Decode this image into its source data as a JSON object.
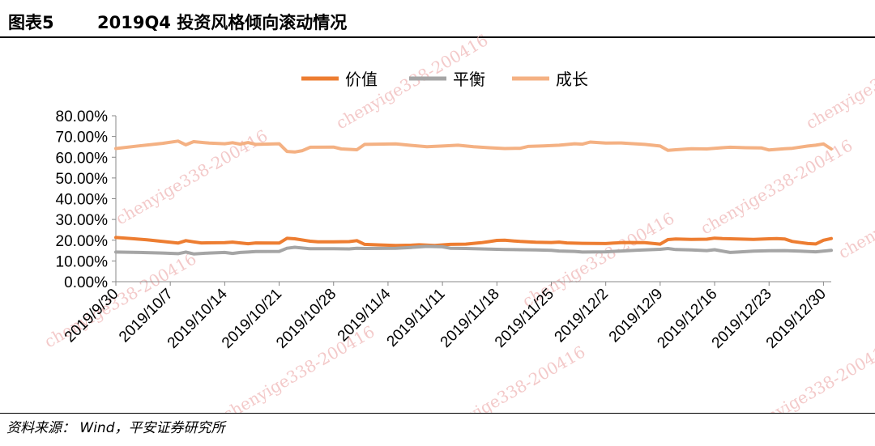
{
  "header": {
    "figure_label": "图表5",
    "title": "2019Q4 投资风格倾向滚动情况"
  },
  "footer": {
    "source": "资料来源： Wind，平安证券研究所"
  },
  "watermark": {
    "text": "chenyige338-200416"
  },
  "colors": {
    "value": "#ED7D31",
    "balance": "#A5A5A5",
    "growth": "#F4B183"
  },
  "chart_data": {
    "type": "line",
    "x_tick_labels": [
      "2019/9/30",
      "2019/10/7",
      "2019/10/14",
      "2019/10/21",
      "2019/10/28",
      "2019/11/4",
      "2019/11/11",
      "2019/11/18",
      "2019/11/25",
      "2019/12/2",
      "2019/12/9",
      "2019/12/16",
      "2019/12/23",
      "2019/12/30"
    ],
    "x_start": "2019-09-30",
    "y_tick_labels": [
      "0.00%",
      "10.00%",
      "20.00%",
      "30.00%",
      "40.00%",
      "50.00%",
      "60.00%",
      "70.00%",
      "80.00%"
    ],
    "ylim": [
      0,
      80
    ],
    "legend_position": "top",
    "series": [
      {
        "name": "价值",
        "color_key": "value",
        "points": [
          [
            0,
            21.3
          ],
          [
            2,
            20.8
          ],
          [
            4,
            20.2
          ],
          [
            7,
            19.0
          ],
          [
            8,
            18.6
          ],
          [
            9,
            19.8
          ],
          [
            10,
            19.2
          ],
          [
            11,
            18.7
          ],
          [
            14,
            18.8
          ],
          [
            15,
            19.1
          ],
          [
            16,
            18.7
          ],
          [
            17,
            18.3
          ],
          [
            18,
            18.7
          ],
          [
            21,
            18.6
          ],
          [
            22,
            20.9
          ],
          [
            23,
            20.7
          ],
          [
            25,
            19.5
          ],
          [
            26,
            19.2
          ],
          [
            28,
            19.2
          ],
          [
            30,
            19.3
          ],
          [
            31,
            19.8
          ],
          [
            32,
            18.0
          ],
          [
            34,
            17.7
          ],
          [
            36,
            17.5
          ],
          [
            38,
            17.6
          ],
          [
            39,
            17.8
          ],
          [
            41,
            17.5
          ],
          [
            43,
            18.0
          ],
          [
            45,
            18.1
          ],
          [
            47,
            18.8
          ],
          [
            48,
            19.3
          ],
          [
            49,
            19.9
          ],
          [
            50,
            20.0
          ],
          [
            52,
            19.4
          ],
          [
            54,
            19.0
          ],
          [
            56,
            18.9
          ],
          [
            57,
            19.1
          ],
          [
            58,
            18.7
          ],
          [
            60,
            18.5
          ],
          [
            63,
            18.4
          ],
          [
            64,
            18.6
          ],
          [
            65,
            18.8
          ],
          [
            66,
            18.9
          ],
          [
            68,
            18.8
          ],
          [
            70,
            18.1
          ],
          [
            71,
            20.3
          ],
          [
            72,
            20.6
          ],
          [
            74,
            20.4
          ],
          [
            76,
            20.5
          ],
          [
            77,
            21.0
          ],
          [
            78,
            20.8
          ],
          [
            80,
            20.6
          ],
          [
            82,
            20.4
          ],
          [
            84,
            20.7
          ],
          [
            85,
            20.8
          ],
          [
            86,
            20.6
          ],
          [
            87,
            19.4
          ],
          [
            89,
            18.4
          ],
          [
            90,
            18.2
          ],
          [
            91,
            20.0
          ],
          [
            92,
            20.8
          ]
        ]
      },
      {
        "name": "平衡",
        "color_key": "balance",
        "points": [
          [
            0,
            14.3
          ],
          [
            3,
            14.1
          ],
          [
            6,
            13.8
          ],
          [
            8,
            13.5
          ],
          [
            9,
            14.3
          ],
          [
            10,
            13.4
          ],
          [
            12,
            13.8
          ],
          [
            14,
            14.1
          ],
          [
            15,
            13.6
          ],
          [
            16,
            14.1
          ],
          [
            17,
            14.3
          ],
          [
            18,
            14.5
          ],
          [
            21,
            14.6
          ],
          [
            22,
            16.1
          ],
          [
            23,
            16.6
          ],
          [
            25,
            15.9
          ],
          [
            28,
            15.9
          ],
          [
            30,
            15.8
          ],
          [
            31,
            16.1
          ],
          [
            32,
            16.0
          ],
          [
            36,
            16.1
          ],
          [
            38,
            16.5
          ],
          [
            40,
            17.0
          ],
          [
            42,
            16.8
          ],
          [
            43,
            16.1
          ],
          [
            45,
            16.0
          ],
          [
            47,
            15.8
          ],
          [
            50,
            15.5
          ],
          [
            52,
            15.4
          ],
          [
            54,
            15.3
          ],
          [
            56,
            15.1
          ],
          [
            57,
            14.8
          ],
          [
            59,
            14.6
          ],
          [
            60,
            14.3
          ],
          [
            63,
            14.4
          ],
          [
            65,
            14.8
          ],
          [
            67,
            15.2
          ],
          [
            70,
            15.6
          ],
          [
            71,
            16.0
          ],
          [
            72,
            15.5
          ],
          [
            74,
            15.3
          ],
          [
            76,
            15.0
          ],
          [
            77,
            15.4
          ],
          [
            79,
            14.1
          ],
          [
            80,
            14.3
          ],
          [
            82,
            14.7
          ],
          [
            84,
            14.9
          ],
          [
            86,
            15.0
          ],
          [
            88,
            14.7
          ],
          [
            90,
            14.4
          ],
          [
            92,
            15.1
          ]
        ]
      },
      {
        "name": "成长",
        "color_key": "growth",
        "points": [
          [
            0,
            64.2
          ],
          [
            3,
            65.5
          ],
          [
            6,
            66.7
          ],
          [
            8,
            67.8
          ],
          [
            9,
            66.0
          ],
          [
            10,
            67.5
          ],
          [
            12,
            66.8
          ],
          [
            14,
            66.5
          ],
          [
            15,
            67.0
          ],
          [
            16,
            66.3
          ],
          [
            17,
            67.1
          ],
          [
            18,
            66.2
          ],
          [
            21,
            66.5
          ],
          [
            22,
            62.8
          ],
          [
            23,
            62.5
          ],
          [
            24,
            63.2
          ],
          [
            25,
            64.8
          ],
          [
            28,
            64.9
          ],
          [
            29,
            64.0
          ],
          [
            31,
            63.6
          ],
          [
            32,
            66.2
          ],
          [
            36,
            66.4
          ],
          [
            38,
            65.7
          ],
          [
            40,
            65.1
          ],
          [
            42,
            65.4
          ],
          [
            44,
            65.8
          ],
          [
            46,
            65.1
          ],
          [
            48,
            64.6
          ],
          [
            50,
            64.2
          ],
          [
            52,
            64.3
          ],
          [
            53,
            65.2
          ],
          [
            55,
            65.5
          ],
          [
            57,
            65.8
          ],
          [
            59,
            66.5
          ],
          [
            60,
            66.3
          ],
          [
            61,
            67.3
          ],
          [
            63,
            66.8
          ],
          [
            65,
            66.9
          ],
          [
            66,
            66.6
          ],
          [
            68,
            66.2
          ],
          [
            70,
            65.4
          ],
          [
            71,
            63.3
          ],
          [
            72,
            63.6
          ],
          [
            74,
            64.1
          ],
          [
            76,
            64.0
          ],
          [
            77,
            64.3
          ],
          [
            78,
            64.6
          ],
          [
            79,
            64.8
          ],
          [
            81,
            64.6
          ],
          [
            83,
            64.5
          ],
          [
            84,
            63.5
          ],
          [
            86,
            64.1
          ],
          [
            87,
            64.3
          ],
          [
            89,
            65.4
          ],
          [
            90,
            65.8
          ],
          [
            91,
            66.4
          ],
          [
            92,
            64.0
          ]
        ]
      }
    ]
  }
}
